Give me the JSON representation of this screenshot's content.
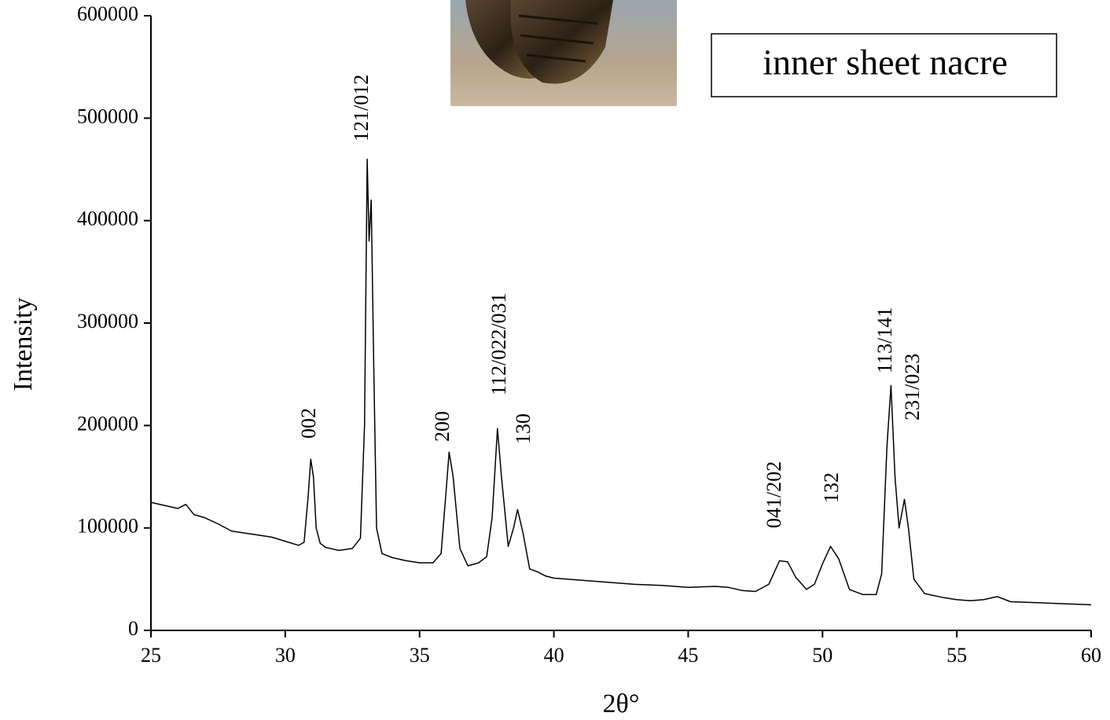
{
  "chart_data": {
    "type": "line",
    "xlabel": "2θ°",
    "ylabel": "Intensity",
    "xlim": [
      25,
      60
    ],
    "xticks": [
      25,
      30,
      35,
      40,
      45,
      50,
      55,
      60
    ],
    "ylim": [
      0,
      600000
    ],
    "yticks": [
      0,
      100000,
      200000,
      300000,
      400000,
      500000,
      600000
    ],
    "grid": false,
    "legend": "upper right",
    "annotations": [
      "002",
      "121/012",
      "200",
      "112/022/031",
      "130",
      "041/202",
      "132",
      "113/141",
      "231/023"
    ],
    "series": [
      {
        "name": "inner sheet nacre",
        "color": "#000000",
        "x": [
          25,
          25.5,
          26,
          26.3,
          26.6,
          27,
          27.5,
          28,
          28.5,
          29,
          29.5,
          30,
          30.5,
          30.7,
          30.85,
          30.95,
          31.05,
          31.15,
          31.3,
          31.5,
          32,
          32.5,
          32.8,
          32.95,
          33.05,
          33.12,
          33.2,
          33.3,
          33.4,
          33.6,
          34,
          34.5,
          35,
          35.5,
          35.8,
          36,
          36.1,
          36.25,
          36.5,
          36.8,
          37.2,
          37.5,
          37.7,
          37.9,
          38.05,
          38.3,
          38.5,
          38.65,
          38.85,
          39.1,
          39.4,
          39.7,
          40,
          41,
          42,
          43,
          44,
          45,
          46,
          46.5,
          47,
          47.5,
          48,
          48.4,
          48.7,
          49,
          49.4,
          49.7,
          50,
          50.3,
          50.6,
          51,
          51.5,
          52,
          52.2,
          52.4,
          52.55,
          52.7,
          52.85,
          53.05,
          53.2,
          53.4,
          53.8,
          54.5,
          55,
          55.5,
          56,
          56.5,
          57,
          58,
          59,
          60
        ],
        "values": [
          125000,
          122000,
          119000,
          123000,
          113000,
          110000,
          104000,
          97000,
          95000,
          93000,
          91000,
          87000,
          83000,
          86000,
          130000,
          167000,
          150000,
          100000,
          85000,
          81000,
          78000,
          80000,
          90000,
          200000,
          460000,
          380000,
          420000,
          250000,
          100000,
          75000,
          71000,
          68000,
          66000,
          66000,
          75000,
          140000,
          174000,
          150000,
          80000,
          63000,
          66000,
          72000,
          110000,
          197000,
          150000,
          82000,
          100000,
          118000,
          95000,
          60000,
          57000,
          53000,
          51000,
          49000,
          47000,
          45000,
          44000,
          42000,
          43000,
          42000,
          39000,
          38000,
          45000,
          68000,
          67000,
          52000,
          40000,
          45000,
          65000,
          82000,
          70000,
          40000,
          35000,
          35000,
          55000,
          180000,
          239000,
          150000,
          100000,
          128000,
          100000,
          50000,
          36000,
          32000,
          30000,
          29000,
          30000,
          33000,
          28000,
          27000,
          26000,
          25000
        ]
      }
    ]
  }
}
